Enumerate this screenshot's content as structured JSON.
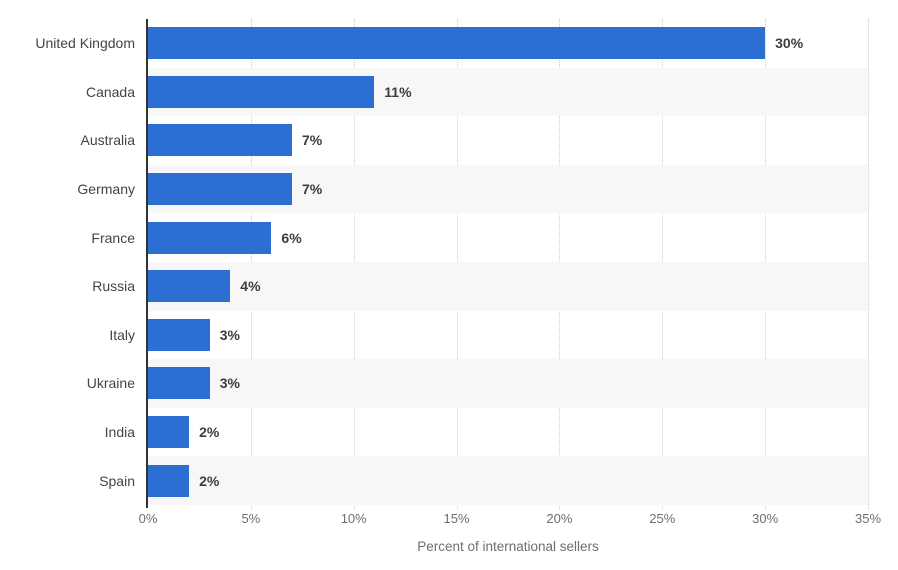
{
  "chart_data": {
    "type": "bar",
    "orientation": "horizontal",
    "title": "",
    "xlabel": "Percent of international sellers",
    "ylabel": "",
    "categories": [
      "United Kingdom",
      "Canada",
      "Australia",
      "Germany",
      "France",
      "Russia",
      "Italy",
      "Ukraine",
      "India",
      "Spain"
    ],
    "values": [
      30,
      11,
      7,
      7,
      6,
      4,
      3,
      3,
      2,
      2
    ],
    "value_labels": [
      "30%",
      "11%",
      "7%",
      "7%",
      "6%",
      "4%",
      "3%",
      "3%",
      "2%",
      "2%"
    ],
    "x_ticks": [
      {
        "value": 0,
        "label": "0%"
      },
      {
        "value": 5,
        "label": "5%"
      },
      {
        "value": 10,
        "label": "10%"
      },
      {
        "value": 15,
        "label": "15%"
      },
      {
        "value": 20,
        "label": "20%"
      },
      {
        "value": 25,
        "label": "25%"
      },
      {
        "value": 30,
        "label": "30%"
      },
      {
        "value": 35,
        "label": "35%"
      }
    ],
    "xlim": [
      0,
      35
    ],
    "grid": "vertical-dotted",
    "legend": "none",
    "row_banding": "alternate-even-rows"
  },
  "colors": {
    "bar": "#2b6fd2",
    "row_band": "#f7f7f7",
    "gridline": "#cccccc",
    "axis_line": "#333333",
    "category_label": "#444444",
    "value_label": "#3d3d3d",
    "tick_label": "#6e6e6e",
    "axis_title": "#6e6e6e",
    "background": "#ffffff"
  }
}
